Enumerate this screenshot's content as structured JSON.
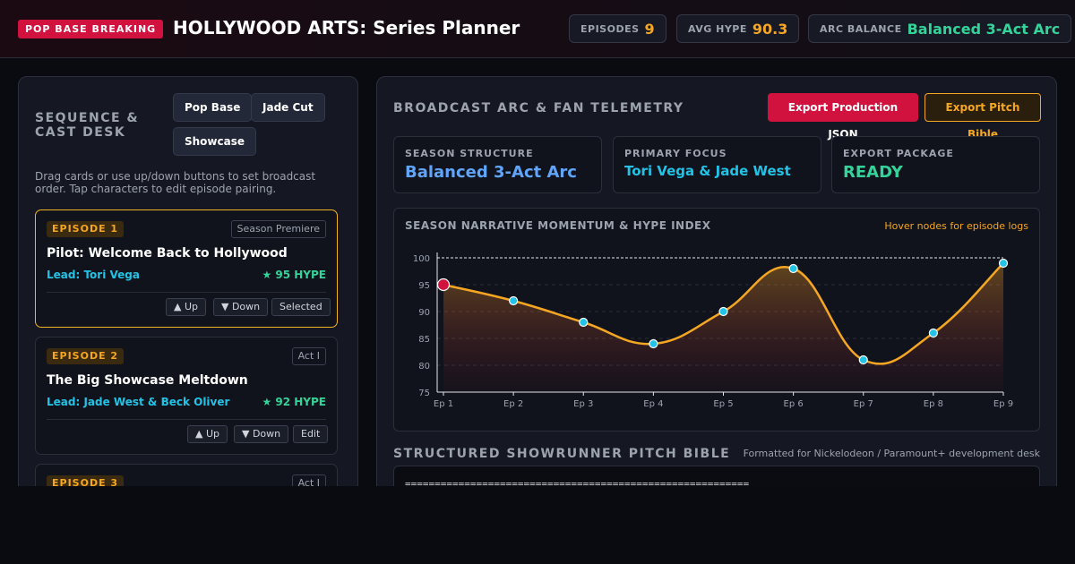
{
  "header": {
    "badge": "POP BASE BREAKING",
    "title": "HOLLYWOOD ARTS: Series Planner",
    "stats": [
      {
        "label": "EPISODES",
        "value": "9",
        "color": "#f5a623"
      },
      {
        "label": "AVG HYPE",
        "value": "90.3",
        "color": "#f5a623"
      },
      {
        "label": "ARC BALANCE",
        "value": "Balanced 3-Act Arc",
        "color": "#34d399"
      }
    ]
  },
  "sidebar": {
    "title": "SEQUENCE & CAST DESK",
    "tabs": [
      "Pop Base",
      "Jade Cut",
      "Showcase"
    ],
    "hint": "Drag cards or use up/down buttons to set broadcast order. Tap characters to edit episode pairing.",
    "cards": [
      {
        "badge": "EPISODE 1",
        "tag": "Season Premiere",
        "title": "Pilot: Welcome Back to Hollywood",
        "lead": "Lead: Tori Vega",
        "hype": "★ 95 HYPE",
        "up": "▲ Up",
        "down": "▼ Down",
        "action": "Selected",
        "selected": true
      },
      {
        "badge": "EPISODE 2",
        "tag": "Act I",
        "title": "The Big Showcase Meltdown",
        "lead": "Lead: Jade West & Beck Oliver",
        "hype": "★ 92 HYPE",
        "up": "▲ Up",
        "down": "▼ Down",
        "action": "Edit",
        "selected": false
      },
      {
        "badge": "EPISODE 3",
        "tag": "Act I",
        "title": "",
        "lead": "",
        "hype": "",
        "up": "",
        "down": "",
        "action": "",
        "selected": false
      }
    ]
  },
  "main": {
    "title": "BROADCAST ARC & FAN TELEMETRY",
    "export_json": "Export Production JSON",
    "export_bible": "Export Pitch Bible",
    "info": [
      {
        "label": "SEASON STRUCTURE",
        "value": "Balanced 3-Act Arc",
        "color": "#60a5fa"
      },
      {
        "label": "PRIMARY FOCUS",
        "value": "Tori Vega & Jade West",
        "color": "#22c3e6"
      },
      {
        "label": "EXPORT PACKAGE",
        "value": "READY",
        "color": "#34d399"
      }
    ],
    "chart_title": "SEASON NARRATIVE MOMENTUM & HYPE INDEX",
    "chart_hint": "Hover nodes for episode logs",
    "pitch_title": "STRUCTURED SHOWRUNNER PITCH BIBLE",
    "pitch_sub": "Formatted for Nickelodeon / Paramount+ development desk",
    "pitch_text": "=========================================================="
  },
  "chart_data": {
    "type": "line",
    "title": "SEASON NARRATIVE MOMENTUM & HYPE INDEX",
    "categories": [
      "Ep 1",
      "Ep 2",
      "Ep 3",
      "Ep 4",
      "Ep 5",
      "Ep 6",
      "Ep 7",
      "Ep 8",
      "Ep 9"
    ],
    "values": [
      95,
      92,
      88,
      84,
      90,
      98,
      81,
      86,
      99
    ],
    "selected_index": 0,
    "ylim": [
      75,
      100
    ],
    "yticks": [
      75,
      80,
      85,
      90,
      95,
      100
    ],
    "line_color": "#f5a623",
    "node_color": "#22c3e6",
    "selected_color": "#d1123f"
  }
}
